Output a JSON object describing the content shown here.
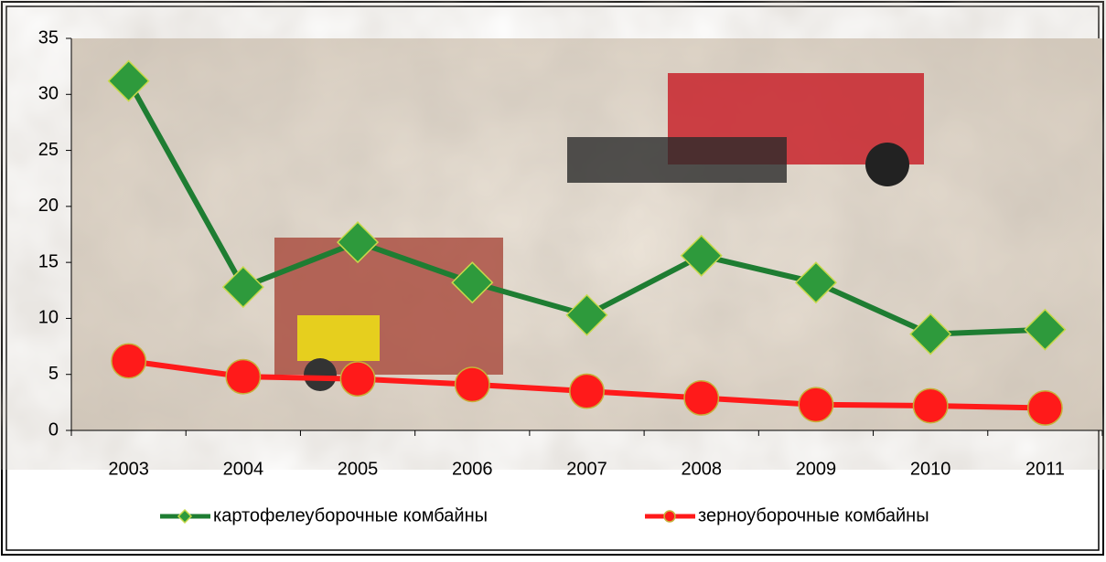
{
  "chart_data": {
    "type": "line",
    "categories": [
      "2003",
      "2004",
      "2005",
      "2006",
      "2007",
      "2008",
      "2009",
      "2010",
      "2011"
    ],
    "series": [
      {
        "name": "картофелеуборочные комбайны",
        "color": "#1e7d32",
        "marker": "diamond",
        "values": [
          31.2,
          12.8,
          16.8,
          13.2,
          10.3,
          15.6,
          13.2,
          8.6,
          9.0
        ]
      },
      {
        "name": "зерноуборочные комбайны",
        "color": "#ff1a1a",
        "marker": "circle",
        "values": [
          6.2,
          4.8,
          4.6,
          4.1,
          3.5,
          2.9,
          2.3,
          2.2,
          2.0
        ]
      }
    ],
    "ylim": [
      0,
      35
    ],
    "yticks": [
      0,
      5,
      10,
      15,
      20,
      25,
      30,
      35
    ],
    "grid": false,
    "legend": "bottom"
  }
}
